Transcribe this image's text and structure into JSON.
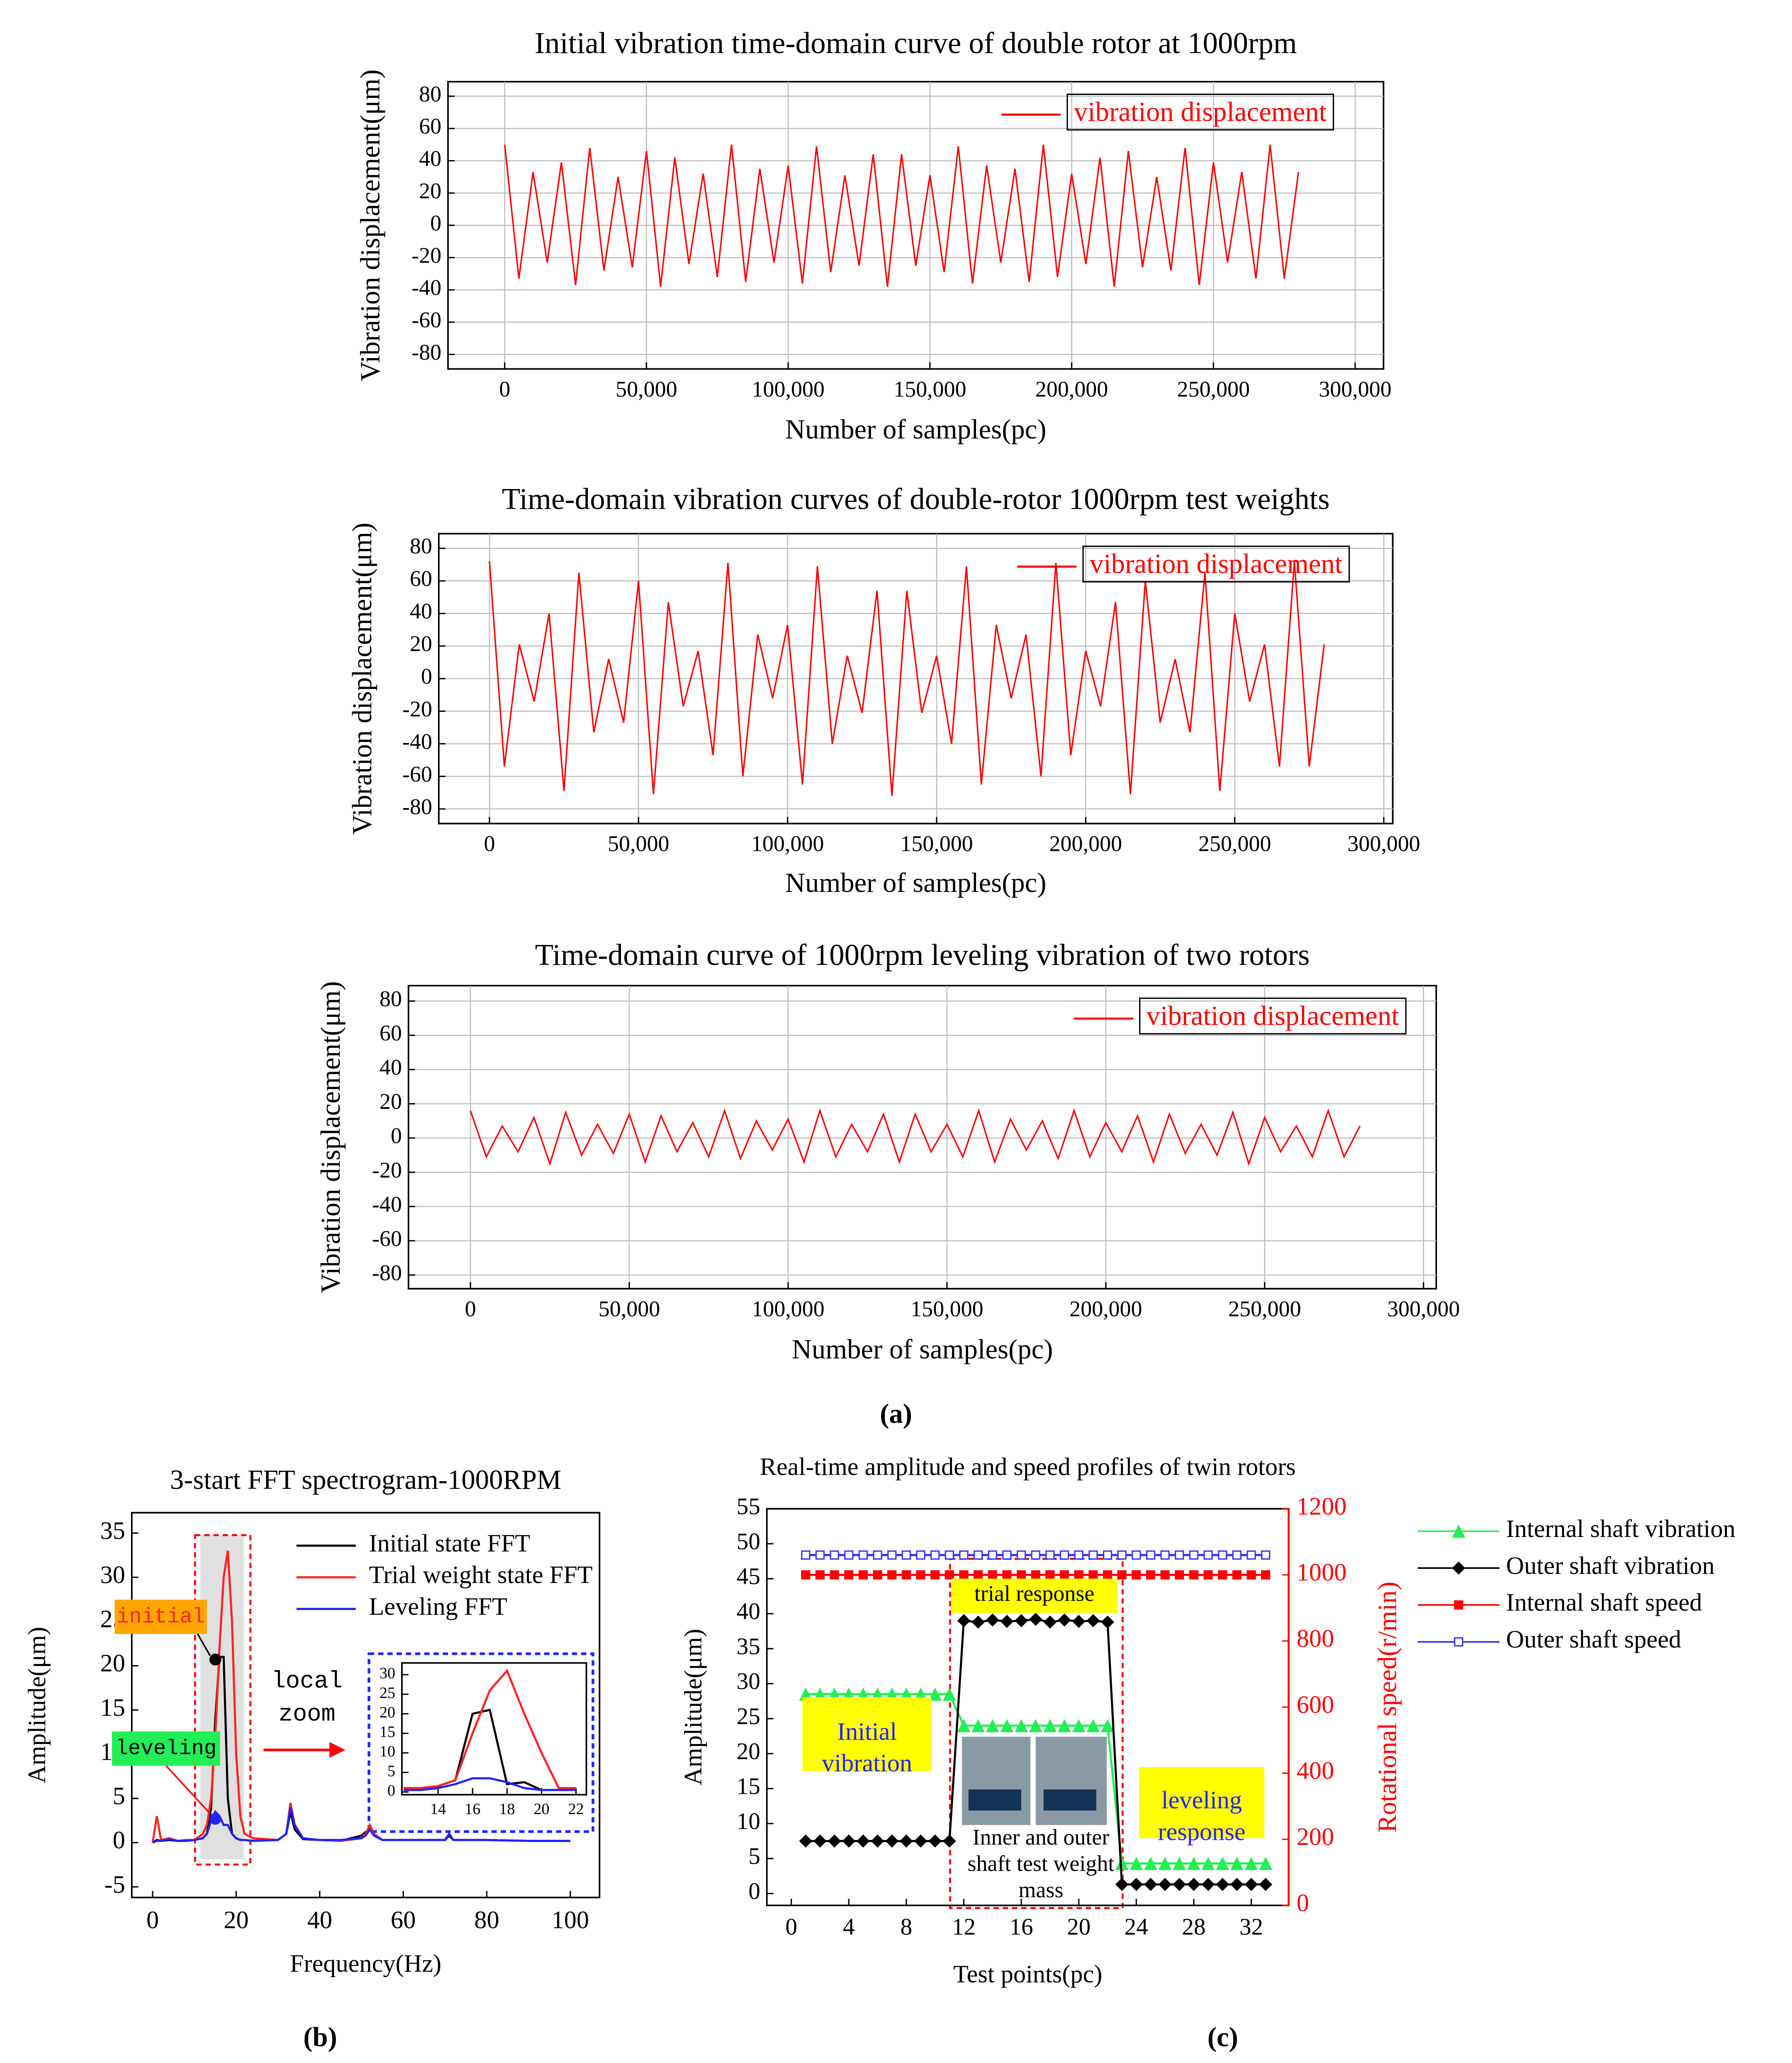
{
  "chart_data": [
    {
      "type": "line",
      "title": "Initial vibration time-domain curve of double rotor at 1000rpm",
      "x_label": "Number of samples(pc)",
      "y_label": "Vibration displacement(μm)",
      "x": [
        0,
        5000,
        10000,
        15000,
        20000,
        25000,
        30000,
        35000,
        40000,
        45000,
        50000,
        55000,
        60000,
        65000,
        70000,
        75000,
        80000,
        85000,
        90000,
        95000,
        100000,
        105000,
        110000,
        115000,
        120000,
        125000,
        130000,
        135000,
        140000,
        145000,
        150000,
        155000,
        160000,
        165000,
        170000,
        175000,
        180000,
        185000,
        190000,
        195000,
        200000,
        205000,
        210000,
        215000,
        220000,
        225000,
        230000,
        235000,
        240000,
        245000,
        250000,
        255000,
        260000,
        265000,
        270000,
        275000,
        280000
      ],
      "series": [
        {
          "name": "vibration displacement",
          "color": "#ff0000",
          "values": [
            50,
            -33,
            33,
            -23,
            39,
            -37,
            48,
            -28,
            30,
            -26,
            46,
            -38,
            42,
            -24,
            32,
            -32,
            50,
            -35,
            35,
            -23,
            37,
            -36,
            49,
            -29,
            31,
            -25,
            44,
            -38,
            44,
            -25,
            31,
            -29,
            49,
            -36,
            37,
            -23,
            35,
            -35,
            50,
            -32,
            32,
            -24,
            42,
            -38,
            46,
            -26,
            30,
            -28,
            48,
            -37,
            39,
            -23,
            33,
            -33,
            50,
            -33,
            33
          ]
        }
      ],
      "xlim": [
        -20000,
        310000
      ],
      "ylim": [
        -89,
        89
      ],
      "xticks": [
        0,
        {
          "value": 50000,
          "label": "50,000"
        },
        {
          "value": 100000,
          "label": "100,000"
        },
        {
          "value": 150000,
          "label": "150,000"
        },
        {
          "value": 200000,
          "label": "200,000"
        },
        {
          "value": 250000,
          "label": "250,000"
        },
        {
          "value": 300000,
          "label": "300,000"
        }
      ],
      "yticks": [
        -80,
        -60,
        -40,
        -20,
        0,
        20,
        40,
        60,
        80
      ],
      "grid": true,
      "legend": "upper right",
      "legend_frame": true
    },
    {
      "type": "line",
      "title": "Time-domain vibration curves of double-rotor 1000rpm test weights",
      "x_label": "Number of samples(pc)",
      "y_label": "Vibration displacement(μm)",
      "x": [
        0,
        5000,
        10000,
        15000,
        20000,
        25000,
        30000,
        35000,
        40000,
        45000,
        50000,
        55000,
        60000,
        65000,
        70000,
        75000,
        80000,
        85000,
        90000,
        95000,
        100000,
        105000,
        110000,
        115000,
        120000,
        125000,
        130000,
        135000,
        140000,
        145000,
        150000,
        155000,
        160000,
        165000,
        170000,
        175000,
        180000,
        185000,
        190000,
        195000,
        200000,
        205000,
        210000,
        215000,
        220000,
        225000,
        230000,
        235000,
        240000,
        245000,
        250000,
        255000,
        260000,
        265000,
        270000,
        275000,
        280000
      ],
      "series": [
        {
          "name": "vibration displacement",
          "color": "#ff0000",
          "values": [
            72,
            -54,
            21,
            -14,
            40,
            -69,
            65,
            -33,
            12,
            -27,
            60,
            -71,
            47,
            -17,
            17,
            -47,
            71,
            -60,
            27,
            -12,
            33,
            -65,
            69,
            -40,
            14,
            -21,
            54,
            -72,
            54,
            -21,
            14,
            -40,
            69,
            -65,
            33,
            -12,
            27,
            -60,
            71,
            -47,
            17,
            -17,
            47,
            -71,
            60,
            -27,
            12,
            -33,
            65,
            -69,
            40,
            -14,
            21,
            -54,
            72,
            -54,
            21
          ]
        }
      ],
      "xlim": [
        -17000,
        303000
      ],
      "ylim": [
        -89,
        89
      ],
      "xticks": [
        0,
        {
          "value": 50000,
          "label": "50,000"
        },
        {
          "value": 100000,
          "label": "100,000"
        },
        {
          "value": 150000,
          "label": "150,000"
        },
        {
          "value": 200000,
          "label": "200,000"
        },
        {
          "value": 250000,
          "label": "250,000"
        },
        {
          "value": 300000,
          "label": "300,000"
        }
      ],
      "yticks": [
        -80,
        -60,
        -40,
        -20,
        0,
        20,
        40,
        60,
        80
      ],
      "grid": true,
      "legend": "upper right",
      "legend_frame": true
    },
    {
      "type": "line",
      "title": "Time-domain curve of 1000rpm leveling vibration of two rotors",
      "x_label": "Number of samples(pc)",
      "y_label": "Vibration displacement(μm)",
      "x": [
        0,
        5000,
        10000,
        15000,
        20000,
        25000,
        30000,
        35000,
        40000,
        45000,
        50000,
        55000,
        60000,
        65000,
        70000,
        75000,
        80000,
        85000,
        90000,
        95000,
        100000,
        105000,
        110000,
        115000,
        120000,
        125000,
        130000,
        135000,
        140000,
        145000,
        150000,
        155000,
        160000,
        165000,
        170000,
        175000,
        180000,
        185000,
        190000,
        195000,
        200000,
        205000,
        210000,
        215000,
        220000,
        225000,
        230000,
        235000,
        240000,
        245000,
        250000,
        255000,
        260000,
        265000,
        270000,
        275000,
        280000
      ],
      "series": [
        {
          "name": "vibration displacement",
          "color": "#ff0000",
          "values": [
            16,
            -11,
            7,
            -8,
            12,
            -15,
            15,
            -10,
            8,
            -9,
            14,
            -14,
            13,
            -8,
            9,
            -11,
            16,
            -12,
            10,
            -7,
            11,
            -14,
            16,
            -11,
            8,
            -8,
            14,
            -14,
            14,
            -8,
            8,
            -11,
            16,
            -14,
            11,
            -7,
            10,
            -12,
            16,
            -11,
            9,
            -8,
            13,
            -14,
            14,
            -9,
            8,
            -10,
            15,
            -15,
            12,
            -8,
            7,
            -11,
            16,
            -11,
            7
          ]
        }
      ],
      "xlim": [
        -19500,
        304000
      ],
      "ylim": [
        -88,
        89
      ],
      "xticks": [
        0,
        {
          "value": 50000,
          "label": "50,000"
        },
        {
          "value": 100000,
          "label": "100,000"
        },
        {
          "value": 150000,
          "label": "150,000"
        },
        {
          "value": 200000,
          "label": "200,000"
        },
        {
          "value": 250000,
          "label": "250,000"
        },
        {
          "value": 300000,
          "label": "300,000"
        }
      ],
      "yticks": [
        -80,
        -60,
        -40,
        -20,
        0,
        20,
        40,
        60,
        80
      ],
      "grid": true,
      "legend": "upper right",
      "legend_frame": true
    },
    {
      "type": "line",
      "title": "3-start FFT spectrogram-1000RPM",
      "x_label": "Frequency(Hz)",
      "y_label": "Amplitude(μm)",
      "x": [
        0,
        1,
        2,
        4,
        6,
        8,
        10,
        12,
        13,
        14,
        15,
        16,
        17,
        18,
        19,
        20,
        21,
        22,
        24,
        30,
        32,
        33,
        34,
        36,
        40,
        45,
        50,
        51,
        52,
        53,
        55,
        60,
        70,
        71,
        72,
        80,
        90,
        100
      ],
      "series": [
        {
          "name": "Initial state FFT",
          "color": "#000000",
          "values": [
            0,
            0.3,
            0.2,
            0.3,
            0.2,
            0.2,
            0.3,
            0.5,
            1,
            4,
            14,
            21,
            21,
            5,
            1,
            0.5,
            0.3,
            0.3,
            0.2,
            0.3,
            1,
            3.5,
            1.5,
            0.4,
            0.3,
            0.2,
            0.8,
            1.2,
            1.5,
            0.8,
            0.3,
            0.3,
            0.3,
            0.8,
            0.3,
            0.3,
            0.2,
            0.2
          ]
        },
        {
          "name": "Trial weight state FFT",
          "color": "#ff2222",
          "values": [
            0,
            3,
            0.3,
            0.5,
            0.2,
            0.3,
            0.3,
            1,
            2,
            5,
            12,
            22,
            30,
            33,
            25,
            10,
            3,
            1,
            0.5,
            0.3,
            1,
            4.5,
            2,
            0.5,
            0.3,
            0.2,
            0.5,
            1,
            2,
            1,
            0.3,
            0.3,
            0.3,
            1,
            0.3,
            0.3,
            0.2,
            0.2
          ]
        },
        {
          "name": "Leveling FFT",
          "color": "#2222ff",
          "values": [
            0,
            0.2,
            0.2,
            0.4,
            0.2,
            0.2,
            0.3,
            0.5,
            1,
            2.5,
            3.5,
            3,
            2,
            2,
            1,
            0.5,
            0.3,
            0.3,
            0.2,
            0.3,
            1,
            4,
            2,
            0.5,
            0.3,
            0.3,
            0.5,
            0.8,
            1.5,
            0.8,
            0.3,
            0.3,
            0.3,
            1,
            0.3,
            0.3,
            0.2,
            0.2
          ]
        }
      ],
      "xlim": [
        -5,
        107
      ],
      "ylim": [
        -6.2,
        37.3
      ],
      "xticks": [
        0,
        20,
        40,
        60,
        80,
        100
      ],
      "yticks": [
        -5,
        0,
        5,
        10,
        15,
        20,
        25,
        30,
        35
      ],
      "grid": false,
      "legend": "upper right",
      "annotations": [
        [
          "initial"
        ],
        [
          "leveling"
        ],
        [
          "local",
          "zoom"
        ]
      ]
    },
    {
      "type": "line",
      "x": [
        12,
        13,
        14,
        15,
        16,
        17,
        18,
        19,
        20,
        21,
        22
      ],
      "series": [
        {
          "color": "#000000",
          "values": [
            1,
            1,
            1.5,
            3,
            20,
            21,
            2,
            2.5,
            0.5,
            0.5,
            0.5
          ]
        },
        {
          "color": "#ff2222",
          "values": [
            1,
            1,
            1.5,
            3,
            15,
            26,
            31,
            20,
            10,
            1,
            1
          ]
        },
        {
          "color": "#2222ff",
          "values": [
            0.5,
            0.5,
            1,
            2,
            3.5,
            3.5,
            2.5,
            1,
            0.5,
            0.5,
            0.5
          ]
        }
      ],
      "xlim": [
        11.9,
        22.6
      ],
      "ylim": [
        -0.7,
        33
      ],
      "xticks": [
        14,
        16,
        18,
        20,
        22
      ],
      "yticks": [
        0,
        5,
        10,
        15,
        20,
        25,
        30
      ],
      "grid": false
    },
    {
      "type": "line",
      "title": "Real-time amplitude and speed profiles of twin rotors",
      "x_label": "Test points(pc)",
      "y_label": "Amplitude(μm)",
      "y2_label": "Rotational speed(r/min)",
      "y2_color": "#ff0000",
      "x": [
        1,
        2,
        3,
        4,
        5,
        6,
        7,
        8,
        9,
        10,
        11,
        12,
        13,
        14,
        15,
        16,
        17,
        18,
        19,
        20,
        21,
        22,
        23,
        24,
        25,
        26,
        27,
        28,
        29,
        30,
        31,
        32,
        33
      ],
      "series": [
        {
          "name": "Internal shaft vibration",
          "color": "#22ee55",
          "marker": "triangle",
          "values": [
            28.5,
            28.5,
            28.5,
            28.5,
            28.5,
            28.5,
            28.5,
            28.5,
            28.5,
            28.5,
            28.5,
            24,
            24,
            24,
            24,
            24,
            24,
            24,
            24,
            24,
            24,
            24,
            4.3,
            4.3,
            4.3,
            4.3,
            4.3,
            4.3,
            4.3,
            4.3,
            4.3,
            4.3,
            4.3
          ]
        },
        {
          "name": "Outer shaft vibration",
          "color": "#000000",
          "marker": "diamond",
          "values": [
            7.5,
            7.5,
            7.5,
            7.5,
            7.5,
            7.5,
            7.5,
            7.5,
            7.5,
            7.5,
            7.5,
            39,
            38.8,
            39.1,
            38.9,
            39,
            39.2,
            38.8,
            39.1,
            38.9,
            39,
            38.8,
            1.3,
            1.3,
            1.3,
            1.3,
            1.3,
            1.3,
            1.3,
            1.3,
            1.3,
            1.3,
            1.3
          ]
        },
        {
          "name": "Internal shaft speed",
          "color": "#ff0000",
          "marker": "square",
          "axis": "y2",
          "values": [
            1000,
            1000,
            1000,
            1000,
            1000,
            1000,
            1000,
            1000,
            1000,
            1000,
            1000,
            1000,
            1000,
            1000,
            1000,
            1000,
            1000,
            1000,
            1000,
            1000,
            1000,
            1000,
            1000,
            1000,
            1000,
            1000,
            1000,
            1000,
            1000,
            1000,
            1000,
            1000,
            1000
          ]
        },
        {
          "name": "Outer shaft speed",
          "color": "#3333ff",
          "marker": "square-open",
          "axis": "y2",
          "values": [
            1060,
            1060,
            1060,
            1060,
            1060,
            1060,
            1060,
            1060,
            1060,
            1060,
            1060,
            1060,
            1060,
            1060,
            1060,
            1060,
            1060,
            1060,
            1060,
            1060,
            1060,
            1060,
            1060,
            1060,
            1060,
            1060,
            1060,
            1060,
            1060,
            1060,
            1060,
            1060,
            1060
          ]
        }
      ],
      "xlim": [
        -1.7,
        34.6
      ],
      "ylim": [
        -1.7,
        55
      ],
      "y2lim": [
        0,
        1200
      ],
      "xticks": [
        0,
        4,
        8,
        12,
        16,
        20,
        24,
        28,
        32
      ],
      "yticks": [
        0,
        5,
        10,
        15,
        20,
        25,
        30,
        35,
        40,
        45,
        50,
        55
      ],
      "y2ticks": [
        0,
        200,
        400,
        600,
        800,
        1000,
        1200
      ],
      "grid": false,
      "legend": "outside right",
      "annotations": [
        [
          "trial response"
        ],
        [
          "Initial",
          "vibration"
        ],
        [
          "leveling",
          "response"
        ],
        [
          "Inner and outer",
          "shaft test weight",
          "mass"
        ]
      ]
    }
  ],
  "captions": [
    "(a)",
    "(b)",
    "(c)"
  ]
}
